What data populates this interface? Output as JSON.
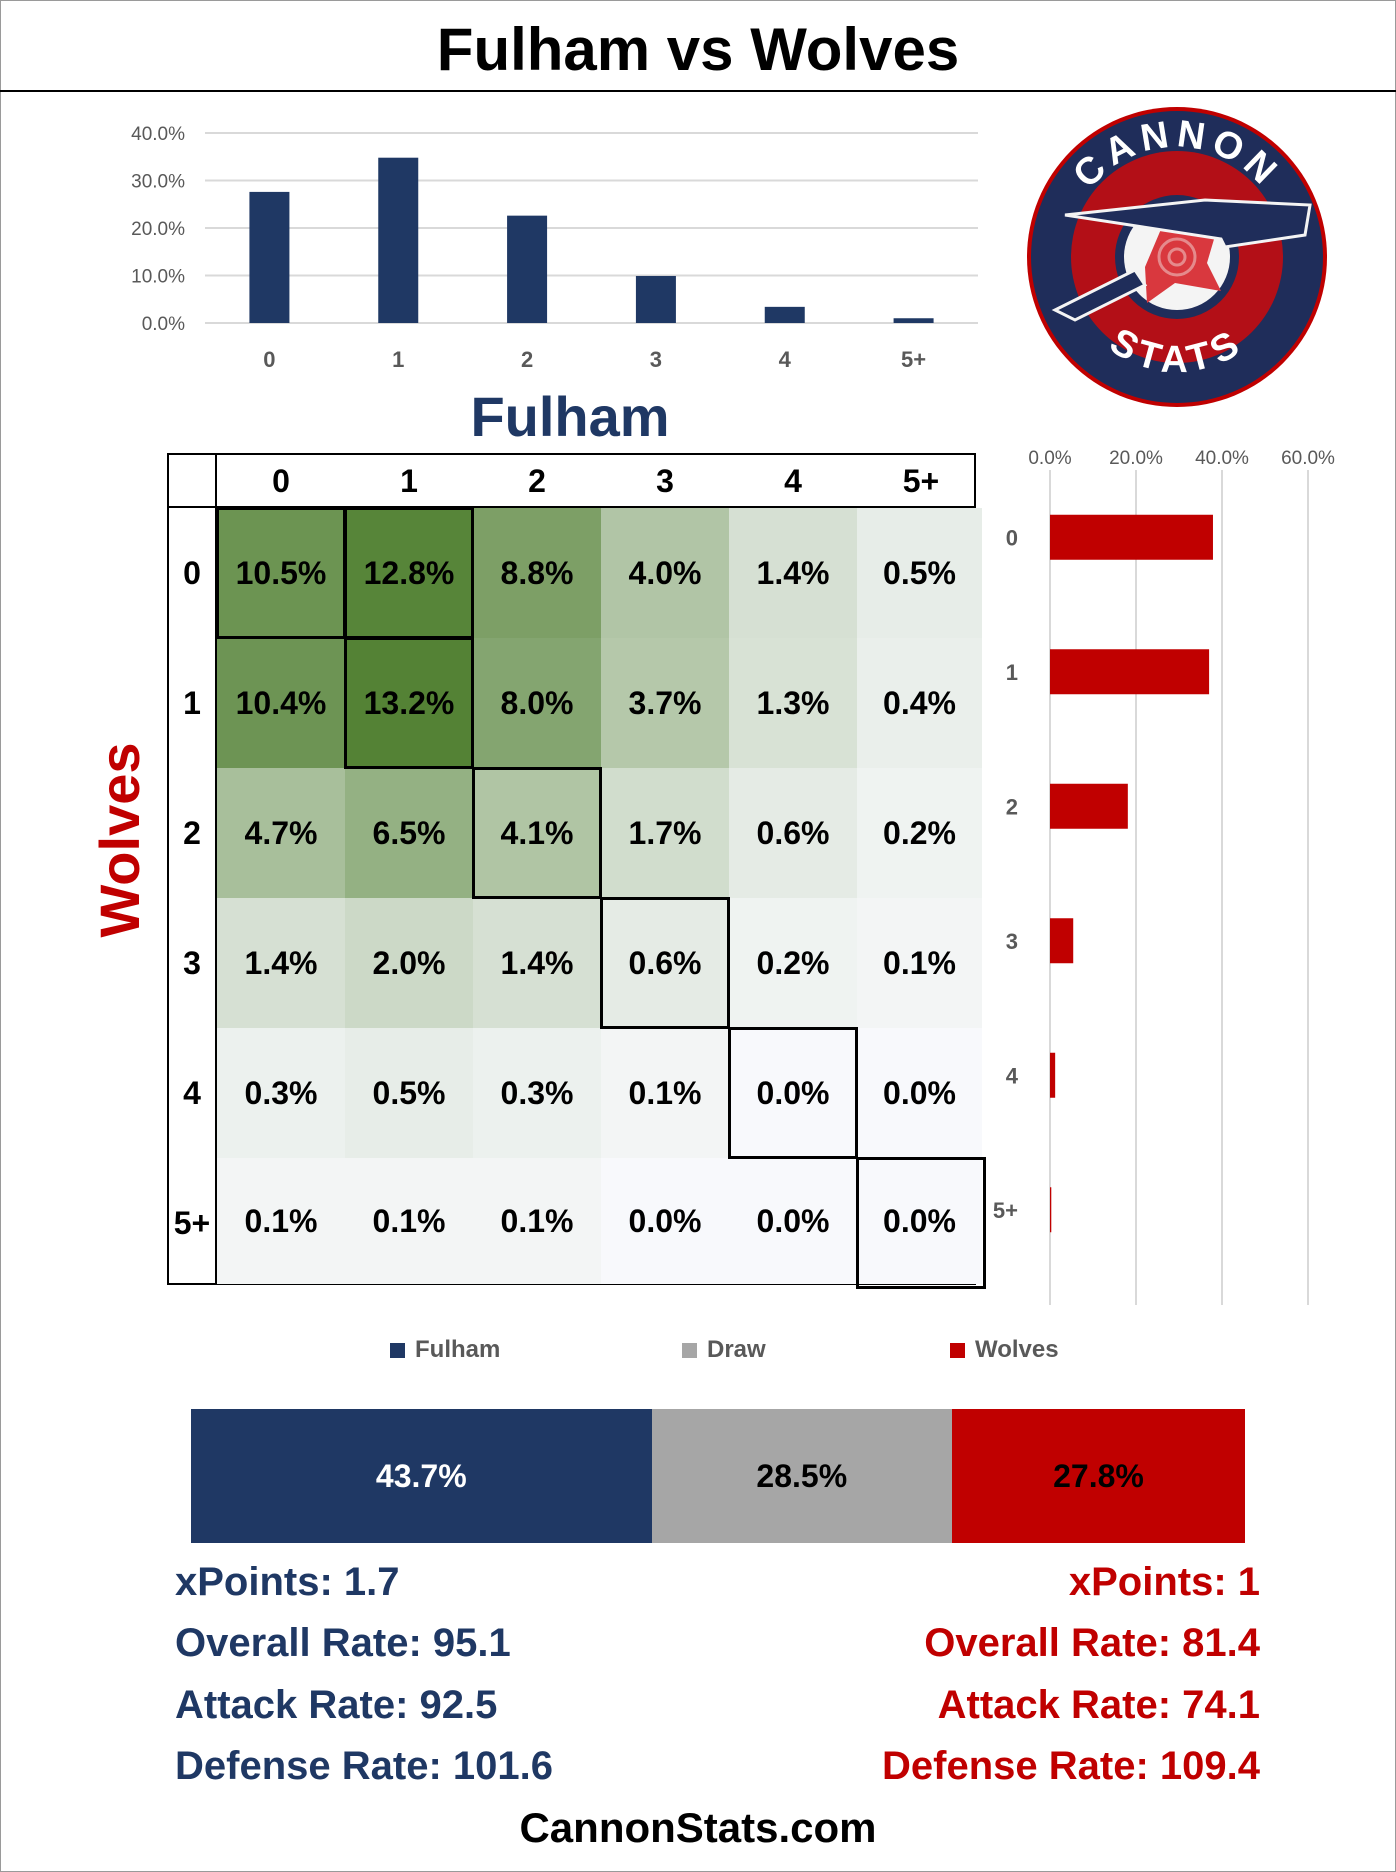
{
  "title": "Fulham vs Wolves",
  "home_team": "Fulham",
  "away_team": "Wolves",
  "colors": {
    "home": "#1f3864",
    "draw": "#a6a6a6",
    "away": "#c00000",
    "grid": "#d9d9d9"
  },
  "logo": {
    "top_text": "CANNON",
    "bottom_text": "STATS"
  },
  "chart_data": [
    {
      "type": "bar",
      "categories": [
        "0",
        "1",
        "2",
        "3",
        "4",
        "5+"
      ],
      "values": [
        27.6,
        34.8,
        22.6,
        9.9,
        3.4,
        1.0
      ],
      "ylim": [
        0,
        40
      ],
      "yticks": [
        "0.0%",
        "10.0%",
        "20.0%",
        "30.0%",
        "40.0%"
      ],
      "grid": true,
      "xlabel": "Fulham",
      "ylabel": ""
    },
    {
      "type": "heatmap",
      "col_labels": [
        "0",
        "1",
        "2",
        "3",
        "4",
        "5+"
      ],
      "row_labels": [
        "0",
        "1",
        "2",
        "3",
        "4",
        "5+"
      ],
      "xlabel": "Fulham",
      "ylabel": "Wolves",
      "values": [
        [
          "10.5%",
          "12.8%",
          "8.8%",
          "4.0%",
          "1.4%",
          "0.5%"
        ],
        [
          "10.4%",
          "13.2%",
          "8.0%",
          "3.7%",
          "1.3%",
          "0.4%"
        ],
        [
          "4.7%",
          "6.5%",
          "4.1%",
          "1.7%",
          "0.6%",
          "0.2%"
        ],
        [
          "1.4%",
          "2.0%",
          "1.4%",
          "0.6%",
          "0.2%",
          "0.1%"
        ],
        [
          "0.3%",
          "0.5%",
          "0.3%",
          "0.1%",
          "0.0%",
          "0.0%"
        ],
        [
          "0.1%",
          "0.1%",
          "0.1%",
          "0.0%",
          "0.0%",
          "0.0%"
        ]
      ]
    },
    {
      "type": "bar",
      "orientation": "horizontal",
      "categories": [
        "0",
        "1",
        "2",
        "3",
        "4",
        "5+"
      ],
      "values": [
        37.9,
        37.0,
        18.1,
        5.4,
        1.2,
        0.3
      ],
      "xlim": [
        0,
        60
      ],
      "xticks": [
        "0.0%",
        "20.0%",
        "40.0%",
        "60.0%"
      ],
      "grid": true
    },
    {
      "type": "bar",
      "orientation": "stacked-horizontal",
      "series": [
        {
          "name": "Fulham",
          "value": 43.7,
          "label": "43.7%"
        },
        {
          "name": "Draw",
          "value": 28.5,
          "label": "28.5%"
        },
        {
          "name": "Wolves",
          "value": 27.8,
          "label": "27.8%"
        }
      ],
      "legend": "top"
    }
  ],
  "stats": {
    "home": [
      "xPoints: 1.7",
      "Overall Rate: 95.1",
      "Attack Rate: 92.5",
      "Defense Rate: 101.6"
    ],
    "away": [
      "xPoints: 1",
      "Overall Rate: 81.4",
      "Attack Rate: 74.1",
      "Defense Rate: 109.4"
    ]
  },
  "footer": "CannonStats.com"
}
